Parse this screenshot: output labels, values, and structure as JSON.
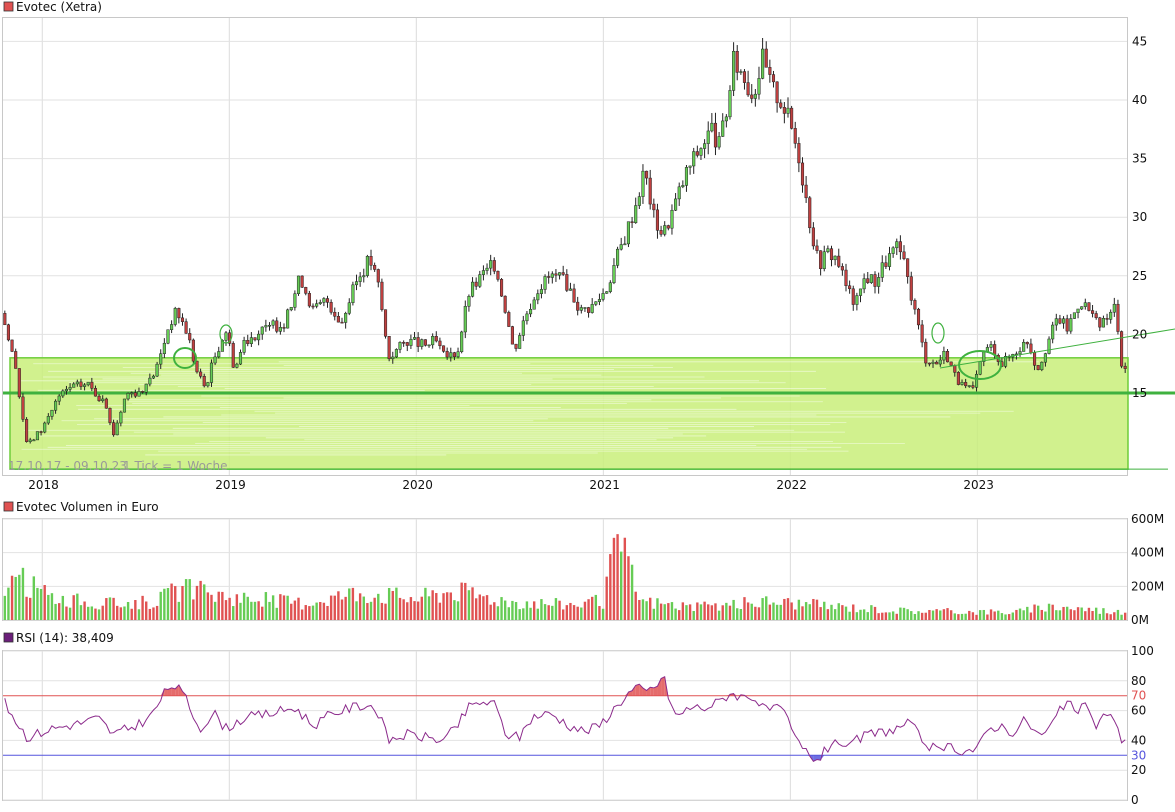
{
  "chart_data": [
    {
      "type": "candlestick",
      "title": "Evotec (Xetra)",
      "legend_color": "#e05252",
      "date_range": "17.10.17 - 09.10.23",
      "tick_info": "1 Tick = 1 Woche",
      "x_labels": [
        "2018",
        "2019",
        "2020",
        "2021",
        "2022",
        "2023"
      ],
      "y_ticks": [
        15,
        20,
        25,
        30,
        35,
        40,
        45
      ],
      "y_range": [
        8,
        47
      ],
      "price_path": [
        {
          "t": 2017.79,
          "v": 21.8
        },
        {
          "t": 2017.85,
          "v": 17.5
        },
        {
          "t": 2017.92,
          "v": 10.5
        },
        {
          "t": 2018.0,
          "v": 12.0
        },
        {
          "t": 2018.08,
          "v": 14.5
        },
        {
          "t": 2018.15,
          "v": 15.5
        },
        {
          "t": 2018.25,
          "v": 15.8
        },
        {
          "t": 2018.33,
          "v": 14.0
        },
        {
          "t": 2018.38,
          "v": 11.5
        },
        {
          "t": 2018.45,
          "v": 15.0
        },
        {
          "t": 2018.55,
          "v": 15.2
        },
        {
          "t": 2018.62,
          "v": 17.5
        },
        {
          "t": 2018.68,
          "v": 21.0
        },
        {
          "t": 2018.72,
          "v": 22.0
        },
        {
          "t": 2018.78,
          "v": 20.0
        },
        {
          "t": 2018.82,
          "v": 17.0
        },
        {
          "t": 2018.87,
          "v": 15.5
        },
        {
          "t": 2018.92,
          "v": 18.0
        },
        {
          "t": 2018.98,
          "v": 20.5
        },
        {
          "t": 2019.03,
          "v": 17.0
        },
        {
          "t": 2019.08,
          "v": 19.5
        },
        {
          "t": 2019.2,
          "v": 20.5
        },
        {
          "t": 2019.3,
          "v": 21.0
        },
        {
          "t": 2019.38,
          "v": 25.0
        },
        {
          "t": 2019.45,
          "v": 22.0
        },
        {
          "t": 2019.52,
          "v": 23.0
        },
        {
          "t": 2019.6,
          "v": 21.0
        },
        {
          "t": 2019.68,
          "v": 24.5
        },
        {
          "t": 2019.75,
          "v": 26.5
        },
        {
          "t": 2019.8,
          "v": 24.0
        },
        {
          "t": 2019.85,
          "v": 18.0
        },
        {
          "t": 2019.95,
          "v": 19.5
        },
        {
          "t": 2020.05,
          "v": 19.0
        },
        {
          "t": 2020.1,
          "v": 19.5
        },
        {
          "t": 2020.15,
          "v": 18.0
        },
        {
          "t": 2020.22,
          "v": 18.5
        },
        {
          "t": 2020.28,
          "v": 23.5
        },
        {
          "t": 2020.35,
          "v": 25.0
        },
        {
          "t": 2020.42,
          "v": 26.0
        },
        {
          "t": 2020.48,
          "v": 22.0
        },
        {
          "t": 2020.52,
          "v": 18.5
        },
        {
          "t": 2020.58,
          "v": 21.5
        },
        {
          "t": 2020.65,
          "v": 24.0
        },
        {
          "t": 2020.72,
          "v": 25.0
        },
        {
          "t": 2020.8,
          "v": 24.5
        },
        {
          "t": 2020.88,
          "v": 22.0
        },
        {
          "t": 2020.95,
          "v": 22.5
        },
        {
          "t": 2021.02,
          "v": 24.0
        },
        {
          "t": 2021.07,
          "v": 26.5
        },
        {
          "t": 2021.12,
          "v": 28.5
        },
        {
          "t": 2021.17,
          "v": 31.0
        },
        {
          "t": 2021.22,
          "v": 34.0
        },
        {
          "t": 2021.27,
          "v": 30.0
        },
        {
          "t": 2021.32,
          "v": 28.5
        },
        {
          "t": 2021.38,
          "v": 31.0
        },
        {
          "t": 2021.45,
          "v": 34.0
        },
        {
          "t": 2021.52,
          "v": 36.0
        },
        {
          "t": 2021.58,
          "v": 37.5
        },
        {
          "t": 2021.62,
          "v": 36.0
        },
        {
          "t": 2021.67,
          "v": 40.0
        },
        {
          "t": 2021.7,
          "v": 43.5
        },
        {
          "t": 2021.75,
          "v": 42.0
        },
        {
          "t": 2021.8,
          "v": 40.5
        },
        {
          "t": 2021.85,
          "v": 43.5
        },
        {
          "t": 2021.9,
          "v": 41.0
        },
        {
          "t": 2021.95,
          "v": 40.0
        },
        {
          "t": 2022.0,
          "v": 38.0
        },
        {
          "t": 2022.05,
          "v": 35.0
        },
        {
          "t": 2022.1,
          "v": 30.0
        },
        {
          "t": 2022.15,
          "v": 26.0
        },
        {
          "t": 2022.2,
          "v": 27.0
        },
        {
          "t": 2022.25,
          "v": 26.5
        },
        {
          "t": 2022.3,
          "v": 24.0
        },
        {
          "t": 2022.35,
          "v": 22.5
        },
        {
          "t": 2022.4,
          "v": 25.0
        },
        {
          "t": 2022.45,
          "v": 24.5
        },
        {
          "t": 2022.52,
          "v": 26.5
        },
        {
          "t": 2022.58,
          "v": 27.5
        },
        {
          "t": 2022.63,
          "v": 24.5
        },
        {
          "t": 2022.68,
          "v": 21.0
        },
        {
          "t": 2022.72,
          "v": 18.0
        },
        {
          "t": 2022.78,
          "v": 17.5
        },
        {
          "t": 2022.83,
          "v": 18.5
        },
        {
          "t": 2022.88,
          "v": 16.5
        },
        {
          "t": 2022.92,
          "v": 15.5
        },
        {
          "t": 2022.98,
          "v": 15.2
        },
        {
          "t": 2023.03,
          "v": 18.5
        },
        {
          "t": 2023.08,
          "v": 19.0
        },
        {
          "t": 2023.13,
          "v": 17.5
        },
        {
          "t": 2023.2,
          "v": 18.5
        },
        {
          "t": 2023.27,
          "v": 19.5
        },
        {
          "t": 2023.32,
          "v": 17.0
        },
        {
          "t": 2023.38,
          "v": 19.5
        },
        {
          "t": 2023.43,
          "v": 21.5
        },
        {
          "t": 2023.48,
          "v": 20.5
        },
        {
          "t": 2023.55,
          "v": 23.0
        },
        {
          "t": 2023.6,
          "v": 22.0
        },
        {
          "t": 2023.65,
          "v": 20.5
        },
        {
          "t": 2023.7,
          "v": 21.5
        },
        {
          "t": 2023.74,
          "v": 22.5
        },
        {
          "t": 2023.77,
          "v": 17.0
        }
      ],
      "support_zone": [
        8.5,
        18.0
      ],
      "support_line": 15.0
    },
    {
      "type": "bar",
      "title": "Evotec Volumen in Euro",
      "legend_color": "#e05252",
      "y_ticks": [
        "0M",
        "200M",
        "400M",
        "600M"
      ],
      "y_range": [
        0,
        600
      ],
      "bar_colors": {
        "up": "#66cc55",
        "down": "#e05252"
      },
      "volume_path": [
        {
          "t": 2017.79,
          "v": 250
        },
        {
          "t": 2017.9,
          "v": 240
        },
        {
          "t": 2018.05,
          "v": 150
        },
        {
          "t": 2018.3,
          "v": 100
        },
        {
          "t": 2018.6,
          "v": 120
        },
        {
          "t": 2018.75,
          "v": 200
        },
        {
          "t": 2019.0,
          "v": 150
        },
        {
          "t": 2019.4,
          "v": 110
        },
        {
          "t": 2019.7,
          "v": 180
        },
        {
          "t": 2020.0,
          "v": 140
        },
        {
          "t": 2020.2,
          "v": 190
        },
        {
          "t": 2020.5,
          "v": 120
        },
        {
          "t": 2020.8,
          "v": 100
        },
        {
          "t": 2021.0,
          "v": 120
        },
        {
          "t": 2021.08,
          "v": 510
        },
        {
          "t": 2021.2,
          "v": 120
        },
        {
          "t": 2021.5,
          "v": 80
        },
        {
          "t": 2021.9,
          "v": 120
        },
        {
          "t": 2022.2,
          "v": 90
        },
        {
          "t": 2022.6,
          "v": 60
        },
        {
          "t": 2022.9,
          "v": 55
        },
        {
          "t": 2023.2,
          "v": 50
        },
        {
          "t": 2023.4,
          "v": 90
        },
        {
          "t": 2023.77,
          "v": 50
        }
      ]
    },
    {
      "type": "line",
      "title": "RSI (14): 38,409",
      "legend_color": "#6b1f7a",
      "line_color": "#8b2a8b",
      "y_ticks": [
        0,
        20,
        40,
        60,
        80,
        100
      ],
      "y_range": [
        0,
        100
      ],
      "upper_level": 70,
      "lower_level": 30,
      "upper_color": "#e05252",
      "lower_color": "#5555dd",
      "rsi_path": [
        {
          "t": 2017.79,
          "v": 67
        },
        {
          "t": 2017.85,
          "v": 55
        },
        {
          "t": 2017.92,
          "v": 42
        },
        {
          "t": 2018.05,
          "v": 48
        },
        {
          "t": 2018.18,
          "v": 51
        },
        {
          "t": 2018.3,
          "v": 55
        },
        {
          "t": 2018.38,
          "v": 44
        },
        {
          "t": 2018.5,
          "v": 50
        },
        {
          "t": 2018.58,
          "v": 56
        },
        {
          "t": 2018.66,
          "v": 73
        },
        {
          "t": 2018.7,
          "v": 78
        },
        {
          "t": 2018.76,
          "v": 70
        },
        {
          "t": 2018.84,
          "v": 48
        },
        {
          "t": 2018.92,
          "v": 58
        },
        {
          "t": 2018.98,
          "v": 48
        },
        {
          "t": 2019.08,
          "v": 55
        },
        {
          "t": 2019.22,
          "v": 58
        },
        {
          "t": 2019.35,
          "v": 62
        },
        {
          "t": 2019.45,
          "v": 50
        },
        {
          "t": 2019.55,
          "v": 58
        },
        {
          "t": 2019.68,
          "v": 63
        },
        {
          "t": 2019.75,
          "v": 64
        },
        {
          "t": 2019.8,
          "v": 58
        },
        {
          "t": 2019.85,
          "v": 40
        },
        {
          "t": 2019.95,
          "v": 44
        },
        {
          "t": 2020.05,
          "v": 42
        },
        {
          "t": 2020.15,
          "v": 40
        },
        {
          "t": 2020.22,
          "v": 50
        },
        {
          "t": 2020.28,
          "v": 62
        },
        {
          "t": 2020.35,
          "v": 66
        },
        {
          "t": 2020.42,
          "v": 64
        },
        {
          "t": 2020.48,
          "v": 44
        },
        {
          "t": 2020.55,
          "v": 42
        },
        {
          "t": 2020.62,
          "v": 56
        },
        {
          "t": 2020.72,
          "v": 58
        },
        {
          "t": 2020.82,
          "v": 50
        },
        {
          "t": 2020.9,
          "v": 46
        },
        {
          "t": 2020.98,
          "v": 50
        },
        {
          "t": 2021.05,
          "v": 60
        },
        {
          "t": 2021.12,
          "v": 70
        },
        {
          "t": 2021.18,
          "v": 76
        },
        {
          "t": 2021.22,
          "v": 72
        },
        {
          "t": 2021.28,
          "v": 76
        },
        {
          "t": 2021.32,
          "v": 84
        },
        {
          "t": 2021.36,
          "v": 64
        },
        {
          "t": 2021.4,
          "v": 55
        },
        {
          "t": 2021.45,
          "v": 62
        },
        {
          "t": 2021.55,
          "v": 62
        },
        {
          "t": 2021.62,
          "v": 66
        },
        {
          "t": 2021.68,
          "v": 72
        },
        {
          "t": 2021.74,
          "v": 69
        },
        {
          "t": 2021.8,
          "v": 70
        },
        {
          "t": 2021.86,
          "v": 60
        },
        {
          "t": 2021.92,
          "v": 62
        },
        {
          "t": 2021.98,
          "v": 56
        },
        {
          "t": 2022.03,
          "v": 40
        },
        {
          "t": 2022.1,
          "v": 30
        },
        {
          "t": 2022.15,
          "v": 27
        },
        {
          "t": 2022.2,
          "v": 35
        },
        {
          "t": 2022.25,
          "v": 42
        },
        {
          "t": 2022.3,
          "v": 32
        },
        {
          "t": 2022.35,
          "v": 40
        },
        {
          "t": 2022.42,
          "v": 44
        },
        {
          "t": 2022.5,
          "v": 46
        },
        {
          "t": 2022.58,
          "v": 48
        },
        {
          "t": 2022.62,
          "v": 52
        },
        {
          "t": 2022.66,
          "v": 48
        },
        {
          "t": 2022.72,
          "v": 38
        },
        {
          "t": 2022.8,
          "v": 32
        },
        {
          "t": 2022.86,
          "v": 36
        },
        {
          "t": 2022.92,
          "v": 33
        },
        {
          "t": 2023.0,
          "v": 34
        },
        {
          "t": 2023.06,
          "v": 48
        },
        {
          "t": 2023.12,
          "v": 50
        },
        {
          "t": 2023.2,
          "v": 45
        },
        {
          "t": 2023.26,
          "v": 55
        },
        {
          "t": 2023.3,
          "v": 46
        },
        {
          "t": 2023.36,
          "v": 43
        },
        {
          "t": 2023.42,
          "v": 56
        },
        {
          "t": 2023.48,
          "v": 66
        },
        {
          "t": 2023.52,
          "v": 60
        },
        {
          "t": 2023.58,
          "v": 62
        },
        {
          "t": 2023.64,
          "v": 50
        },
        {
          "t": 2023.7,
          "v": 60
        },
        {
          "t": 2023.74,
          "v": 52
        },
        {
          "t": 2023.77,
          "v": 38
        }
      ]
    }
  ]
}
